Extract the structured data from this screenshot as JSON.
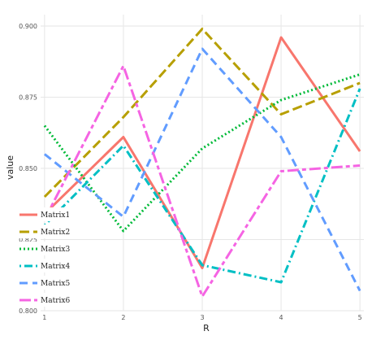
{
  "chart_data": {
    "type": "line",
    "xlabel": "R",
    "ylabel": "value",
    "x": [
      1,
      2,
      3,
      4,
      5
    ],
    "x_ticks": [
      "1",
      "2",
      "3",
      "4",
      "5"
    ],
    "y_ticks": [
      "0.800",
      "0.825",
      "0.850",
      "0.875",
      "0.900"
    ],
    "xlim": [
      0.95,
      5.05
    ],
    "ylim": [
      0.8,
      0.904
    ],
    "grid": true,
    "legend_position": "left, overlapping plot",
    "series": [
      {
        "name": "Matrix1",
        "values": [
          0.834,
          0.861,
          0.815,
          0.896,
          0.856
        ],
        "color": "#F8766D",
        "dash": "solid"
      },
      {
        "name": "Matrix2",
        "values": [
          0.84,
          0.868,
          0.899,
          0.869,
          0.88
        ],
        "color": "#B79F00",
        "dash": "longdash"
      },
      {
        "name": "Matrix3",
        "values": [
          0.865,
          0.828,
          0.857,
          0.874,
          0.883
        ],
        "color": "#00BA38",
        "dash": "dotted"
      },
      {
        "name": "Matrix4",
        "values": [
          0.83,
          0.858,
          0.816,
          0.81,
          0.878
        ],
        "color": "#00BFC4",
        "dash": "dotdash"
      },
      {
        "name": "Matrix5",
        "values": [
          0.855,
          0.833,
          0.892,
          0.861,
          0.807
        ],
        "color": "#619CFF",
        "dash": "dashed"
      },
      {
        "name": "Matrix6",
        "values": [
          0.832,
          0.886,
          0.805,
          0.849,
          0.851
        ],
        "color": "#F564E3",
        "dash": "twodash"
      }
    ]
  }
}
